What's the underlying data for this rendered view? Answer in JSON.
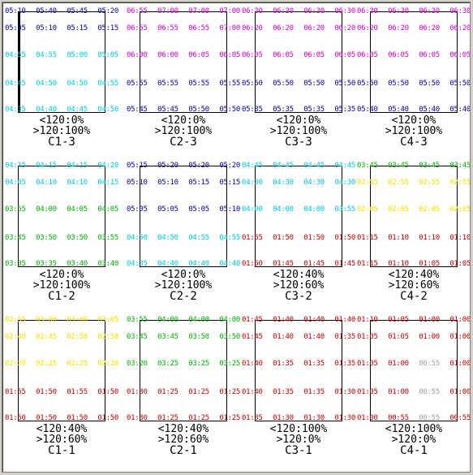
{
  "colors": {
    "navy": "#0000a0",
    "magenta": "#d000d0",
    "cyan": "#00c8e0",
    "green": "#00b000",
    "yellow": "#f0e000",
    "red": "#c00000",
    "grey": "#a0a0a0"
  },
  "cells": [
    {
      "id": "C1-3",
      "caption": {
        "low": "<120:0%",
        "high": ">120:100%",
        "name": "C1-3"
      },
      "rows": [
        {
          "color": "navy",
          "times": [
            "05:10",
            "05:40",
            "05:45",
            "05:20"
          ]
        },
        {
          "color": "navy",
          "times": [
            "05:05",
            "05:10",
            "05:15",
            "05:15"
          ]
        },
        {
          "color": "cyan",
          "times": [
            "04:55",
            "04:55",
            "05:00",
            "05:05"
          ]
        },
        {
          "color": "cyan",
          "times": [
            "04:45",
            "04:50",
            "04:50",
            "04:55"
          ]
        },
        {
          "color": "cyan",
          "times": [
            "04:35",
            "04:40",
            "04:45",
            "04:50"
          ]
        }
      ]
    },
    {
      "id": "C2-3",
      "caption": {
        "low": "<120:0%",
        "high": ">120:100%",
        "name": "C2-3"
      },
      "rows": [
        {
          "color": "magenta",
          "times": [
            "06:55",
            "07:00",
            "07:00",
            "07:00"
          ]
        },
        {
          "color": "magenta",
          "times": [
            "06:55",
            "06:55",
            "06:55",
            "07:00"
          ]
        },
        {
          "color": "magenta",
          "times": [
            "06:00",
            "06:00",
            "06:05",
            "06:05"
          ]
        },
        {
          "color": "navy",
          "times": [
            "05:55",
            "05:55",
            "05:55",
            "05:55"
          ]
        },
        {
          "color": "navy",
          "times": [
            "05:45",
            "05:45",
            "05:50",
            "05:50"
          ]
        }
      ]
    },
    {
      "id": "C3-3",
      "caption": {
        "low": "<120:0%",
        "high": ">120:100%",
        "name": "C3-3"
      },
      "rows": [
        {
          "color": "magenta",
          "times": [
            "06:30",
            "06:30",
            "06:30",
            "06:30"
          ]
        },
        {
          "color": "magenta",
          "times": [
            "06:20",
            "06:20",
            "06:20",
            "06:20"
          ]
        },
        {
          "color": "magenta",
          "times": [
            "06:05",
            "06:05",
            "06:05",
            "06:05"
          ]
        },
        {
          "color": "navy",
          "times": [
            "05:50",
            "05:50",
            "05:50",
            "05:50"
          ]
        },
        {
          "color": "navy",
          "times": [
            "05:35",
            "05:35",
            "05:35",
            "05:35"
          ]
        }
      ]
    },
    {
      "id": "C4-3",
      "caption": {
        "low": "<120:0%",
        "high": ">120:100%",
        "name": "C4-3"
      },
      "rows": [
        {
          "color": "magenta",
          "times": [
            "06:30",
            "06:30",
            "06:30",
            "06:30"
          ]
        },
        {
          "color": "magenta",
          "times": [
            "06:20",
            "06:20",
            "06:20",
            "06:20"
          ]
        },
        {
          "color": "magenta",
          "times": [
            "06:05",
            "06:05",
            "06:05",
            "06:05"
          ]
        },
        {
          "color": "navy",
          "times": [
            "05:50",
            "05:50",
            "05:50",
            "05:50"
          ]
        },
        {
          "color": "navy",
          "times": [
            "05:40",
            "05:40",
            "05:40",
            "05:40"
          ]
        }
      ]
    },
    {
      "id": "C1-2",
      "caption": {
        "low": "<120:0%",
        "high": ">120:100%",
        "name": "C1-2"
      },
      "rows": [
        {
          "color": "cyan",
          "times": [
            "04:15",
            "04:15",
            "04:15",
            "04:20"
          ]
        },
        {
          "color": "cyan",
          "times": [
            "04:05",
            "04:10",
            "04:10",
            "04:15"
          ]
        },
        {
          "color": "green",
          "times": [
            "03:55",
            "04:00",
            "04:05",
            "04:05"
          ]
        },
        {
          "color": "green",
          "times": [
            "03:45",
            "03:50",
            "03:50",
            "03:55"
          ]
        },
        {
          "color": "green",
          "times": [
            "03:35",
            "03:35",
            "03:40",
            "03:40"
          ]
        }
      ]
    },
    {
      "id": "C2-2",
      "caption": {
        "low": "<120:0%",
        "high": ">120:100%",
        "name": "C2-2"
      },
      "rows": [
        {
          "color": "navy",
          "times": [
            "05:15",
            "05:20",
            "05:20",
            "05:20"
          ]
        },
        {
          "color": "navy",
          "times": [
            "05:10",
            "05:10",
            "05:15",
            "05:15"
          ]
        },
        {
          "color": "navy",
          "times": [
            "05:05",
            "05:05",
            "05:05",
            "05:10"
          ]
        },
        {
          "color": "cyan",
          "times": [
            "04:50",
            "04:50",
            "04:55",
            "04:55"
          ]
        },
        {
          "color": "cyan",
          "times": [
            "04:35",
            "04:40",
            "04:40",
            "04:40"
          ]
        }
      ]
    },
    {
      "id": "C3-2",
      "caption": {
        "low": "<120:40%",
        "high": ">120:60%",
        "name": "C3-2"
      },
      "rows": [
        {
          "color": "cyan",
          "times": [
            "04:45",
            "04:45",
            "04:45",
            "04:45"
          ]
        },
        {
          "color": "cyan",
          "times": [
            "04:30",
            "04:30",
            "04:30",
            "04:30"
          ]
        },
        {
          "color": "cyan",
          "times": [
            "04:00",
            "04:00",
            "04:00",
            "03:55"
          ]
        },
        {
          "color": "red",
          "times": [
            "01:55",
            "01:50",
            "01:50",
            "01:50"
          ]
        },
        {
          "color": "red",
          "times": [
            "01:50",
            "01:45",
            "01:45",
            "01:45"
          ]
        }
      ]
    },
    {
      "id": "C4-2",
      "caption": {
        "low": "<120:40%",
        "high": ">120:60%",
        "name": "C4-2"
      },
      "rows": [
        {
          "color": "green",
          "times": [
            "03:45",
            "03:45",
            "03:45",
            "03:45"
          ]
        },
        {
          "color": "yellow",
          "times": [
            "02:55",
            "02:55",
            "02:55",
            "02:55"
          ]
        },
        {
          "color": "yellow",
          "times": [
            "02:05",
            "02:05",
            "02:05",
            "02:05"
          ]
        },
        {
          "color": "red",
          "times": [
            "01:15",
            "01:10",
            "01:10",
            "01:10"
          ]
        },
        {
          "color": "red",
          "times": [
            "01:15",
            "01:10",
            "01:05",
            "01:05"
          ]
        }
      ]
    },
    {
      "id": "C1-1",
      "caption": {
        "low": "<120:40%",
        "high": ">120:60%",
        "name": "C1-1"
      },
      "rows": [
        {
          "color": "yellow",
          "times": [
            "02:55",
            "03:00",
            "03:00",
            "03:05"
          ]
        },
        {
          "color": "yellow",
          "times": [
            "02:40",
            "02:45",
            "02:50",
            "02:50"
          ]
        },
        {
          "color": "yellow",
          "times": [
            "02:20",
            "02:25",
            "02:25",
            "02:30"
          ]
        },
        {
          "color": "red",
          "times": [
            "01:55",
            "01:50",
            "01:55",
            "01:50"
          ]
        },
        {
          "color": "red",
          "times": [
            "01:50",
            "01:50",
            "01:50",
            "01:50"
          ]
        }
      ]
    },
    {
      "id": "C2-1",
      "caption": {
        "low": "<120:40%",
        "high": ">120:60%",
        "name": "C2-1"
      },
      "rows": [
        {
          "color": "green",
          "times": [
            "03:55",
            "04:00",
            "04:00",
            "04:00"
          ]
        },
        {
          "color": "green",
          "times": [
            "03:45",
            "03:45",
            "03:50",
            "03:50"
          ]
        },
        {
          "color": "green",
          "times": [
            "03:20",
            "03:25",
            "03:25",
            "03:25"
          ]
        },
        {
          "color": "red",
          "times": [
            "01:30",
            "01:25",
            "01:25",
            "01:25"
          ]
        },
        {
          "color": "red",
          "times": [
            "01:30",
            "01:25",
            "01:25",
            "01:25"
          ]
        }
      ]
    },
    {
      "id": "C3-1",
      "caption": {
        "low": "<120:100%",
        "high": ">120:0%",
        "name": "C3-1"
      },
      "rows": [
        {
          "color": "red",
          "times": [
            "01:45",
            "01:40",
            "01:40",
            "01:40"
          ]
        },
        {
          "color": "red",
          "times": [
            "01:45",
            "01:40",
            "01:40",
            "01:35"
          ]
        },
        {
          "color": "red",
          "times": [
            "01:40",
            "01:35",
            "01:35",
            "01:35"
          ]
        },
        {
          "color": "red",
          "times": [
            "01:40",
            "01:35",
            "01:35",
            "01:30"
          ]
        },
        {
          "color": "red",
          "times": [
            "01:35",
            "01:30",
            "01:30",
            "01:30"
          ]
        }
      ]
    },
    {
      "id": "C4-1",
      "caption": {
        "low": "<120:100%",
        "high": ">120:0%",
        "name": "C4-1"
      },
      "rows": [
        {
          "color": "red",
          "times": [
            "01:10",
            "01:05",
            "01:00",
            "01:00"
          ]
        },
        {
          "color": "red",
          "times": [
            "01:05",
            "01:05",
            "01:00",
            "01:00"
          ]
        },
        {
          "color": "red",
          "times": [
            "01:05",
            "01:00",
            "00:55",
            "01:00"
          ]
        },
        {
          "color": "red",
          "times": [
            "01:05",
            "01:00",
            "00:55",
            "01:00"
          ]
        },
        {
          "color": "red",
          "times": [
            "01:00",
            "00:55",
            "00:55",
            "00:55"
          ]
        }
      ]
    }
  ],
  "special_colors": {
    "C4-1": {
      "2": {
        "2": "grey"
      },
      "3": {
        "2": "grey"
      },
      "4": {
        "2": "grey"
      }
    }
  }
}
